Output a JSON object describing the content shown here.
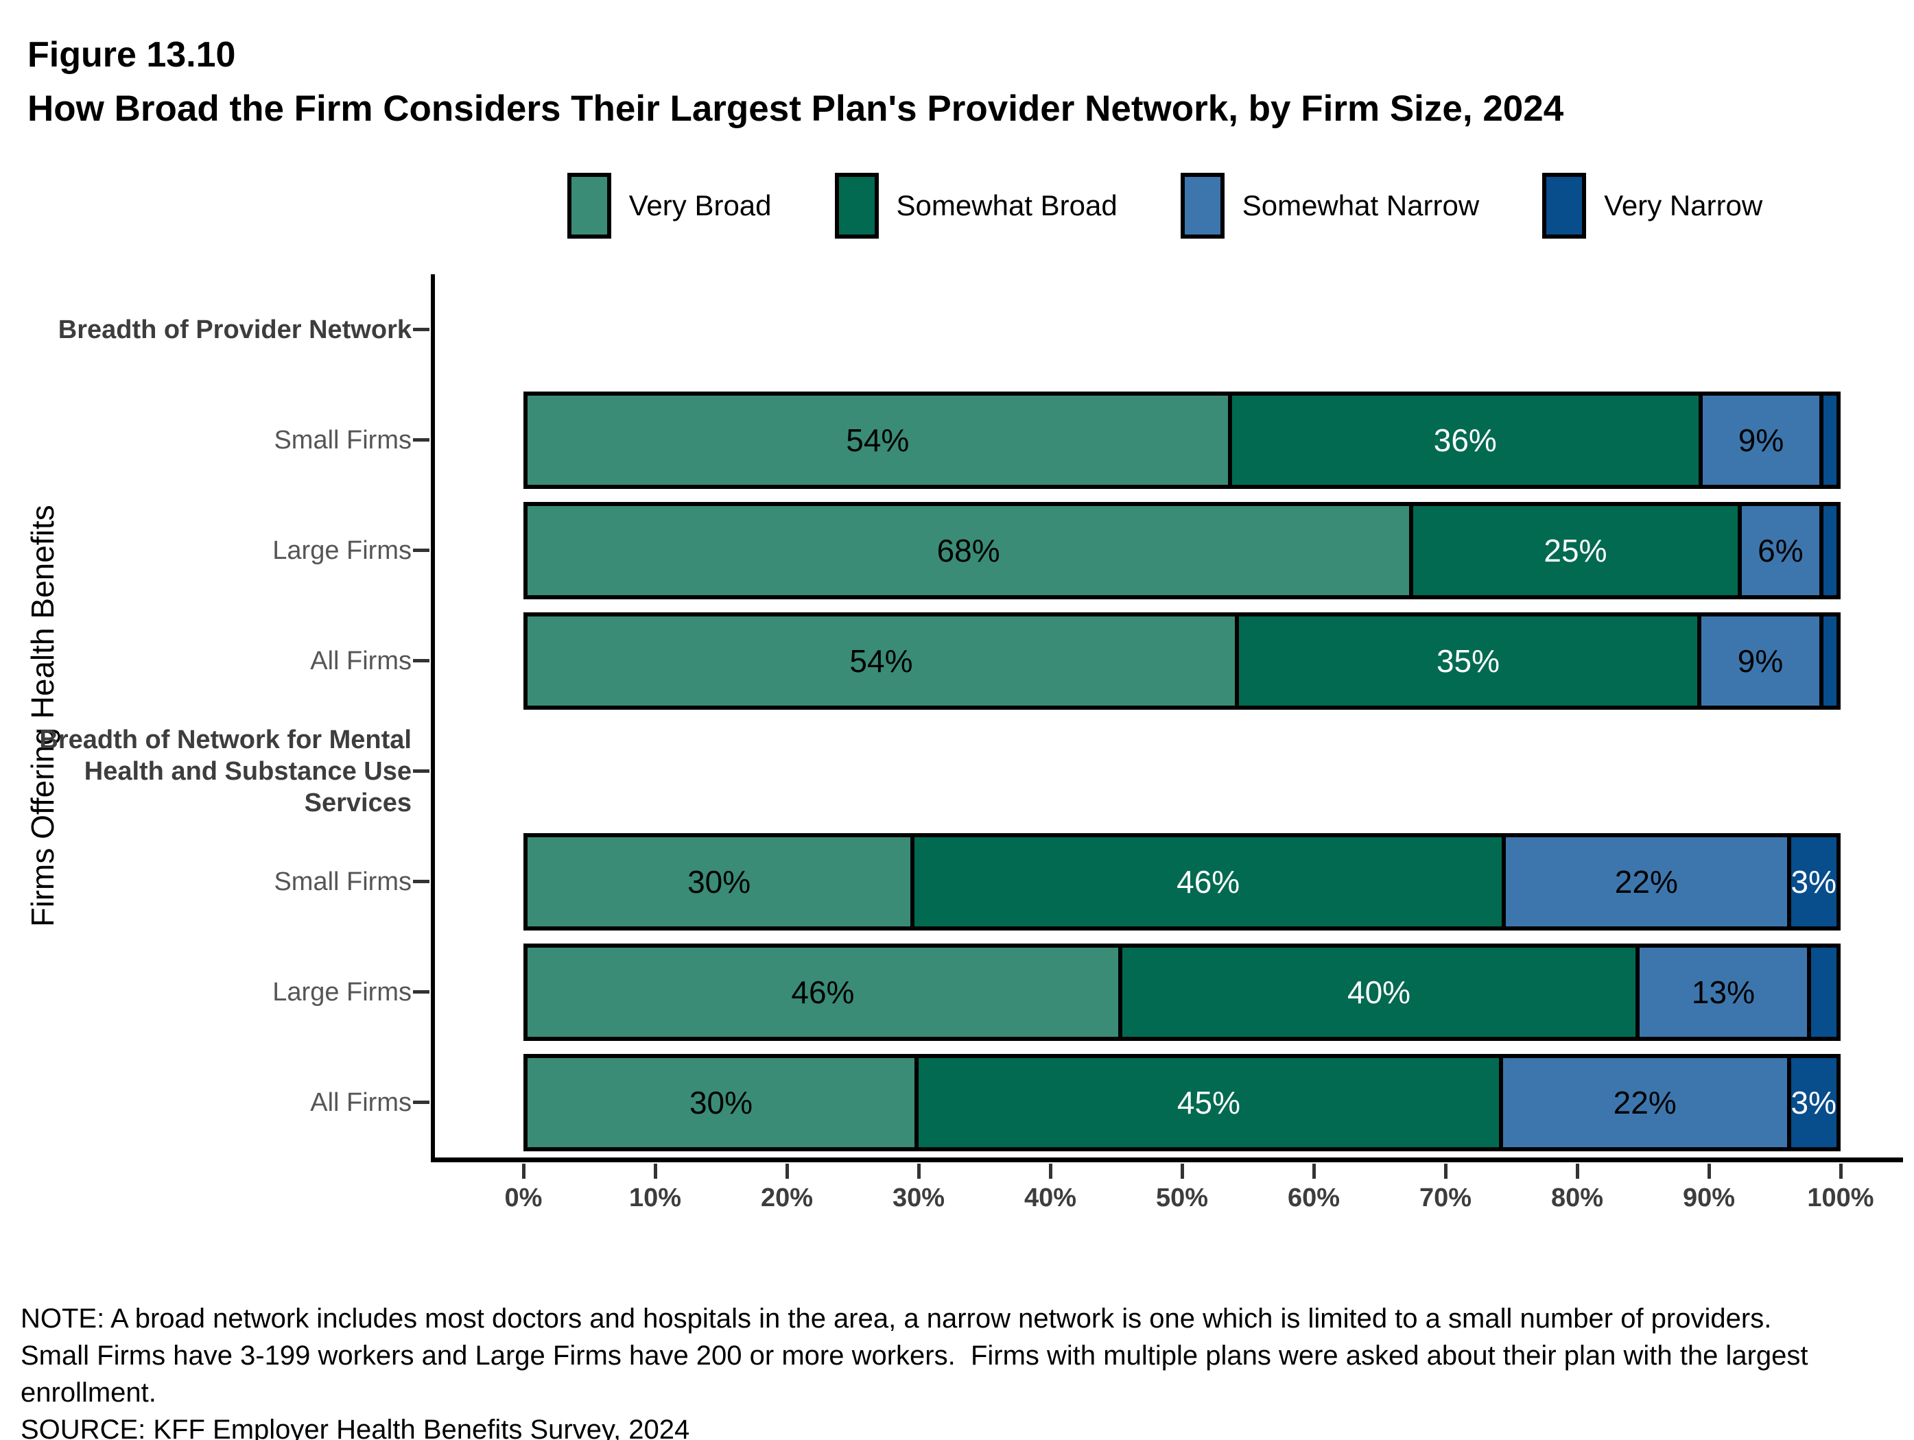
{
  "figure": {
    "label": "Figure 13.10",
    "title": "How Broad the Firm Considers Their Largest Plan's Provider Network, by Firm Size, 2024"
  },
  "legend": [
    {
      "label": "Very Broad",
      "color": "#3A8C76",
      "label_color": "#000000"
    },
    {
      "label": "Somewhat Broad",
      "color": "#026A51",
      "label_color": "#FFFFFF"
    },
    {
      "label": "Somewhat Narrow",
      "color": "#3D76AD",
      "label_color": "#000000"
    },
    {
      "label": "Very Narrow",
      "color": "#084D8C",
      "label_color": "#FFFFFF"
    }
  ],
  "y_axis_title": "Firms Offering Health Benefits",
  "x_axis": {
    "tick_labels": [
      "0%",
      "10%",
      "20%",
      "30%",
      "40%",
      "50%",
      "60%",
      "70%",
      "80%",
      "90%",
      "100%"
    ]
  },
  "chart_data": {
    "type": "bar",
    "orientation": "horizontal",
    "stacked": true,
    "title": "How Broad the Firm Considers Their Largest Plan's Provider Network, by Firm Size, 2024",
    "xlabel": "",
    "ylabel": "Firms Offering Health Benefits",
    "xlim": [
      0,
      100
    ],
    "grid": false,
    "legend_position": "top",
    "series": [
      "Very Broad",
      "Somewhat Broad",
      "Somewhat Narrow",
      "Very Narrow"
    ],
    "rows": [
      {
        "category": "Breadth of Provider Network",
        "header": true,
        "lines": [
          "Breadth of Provider Network"
        ],
        "values": null,
        "labels": null
      },
      {
        "category": "Small Firms",
        "header": false,
        "values": [
          54,
          36,
          9,
          1
        ],
        "labels": [
          "54%",
          "36%",
          "9%",
          null
        ]
      },
      {
        "category": "Large Firms",
        "header": false,
        "values": [
          68,
          25,
          6,
          1
        ],
        "labels": [
          "68%",
          "25%",
          "6%",
          null
        ]
      },
      {
        "category": "All Firms",
        "header": false,
        "values": [
          54,
          35,
          9,
          1
        ],
        "labels": [
          "54%",
          "35%",
          "9%",
          null
        ]
      },
      {
        "category": "Breadth of Network for Mental Health and Substance Use Services",
        "header": true,
        "lines": [
          "Breadth of Network for Mental",
          "Health and Substance Use",
          "Services"
        ],
        "values": null,
        "labels": null
      },
      {
        "category": "Small Firms",
        "header": false,
        "values": [
          30,
          46,
          22,
          3
        ],
        "labels": [
          "30%",
          "46%",
          "22%",
          "3%"
        ]
      },
      {
        "category": "Large Firms",
        "header": false,
        "values": [
          46,
          40,
          13,
          2
        ],
        "labels": [
          "46%",
          "40%",
          "13%",
          null
        ]
      },
      {
        "category": "All Firms",
        "header": false,
        "values": [
          30,
          45,
          22,
          3
        ],
        "labels": [
          "30%",
          "45%",
          "22%",
          "3%"
        ]
      }
    ]
  },
  "notes": {
    "lines": [
      "NOTE: A broad network includes most doctors and hospitals in the area, a narrow network is one which is limited to a small number of providers.",
      "Small Firms have 3-199 workers and Large Firms have 200 or more workers.  Firms with multiple plans were asked about their plan with the largest",
      "enrollment.",
      "SOURCE: KFF Employer Health Benefits Survey, 2024"
    ]
  }
}
